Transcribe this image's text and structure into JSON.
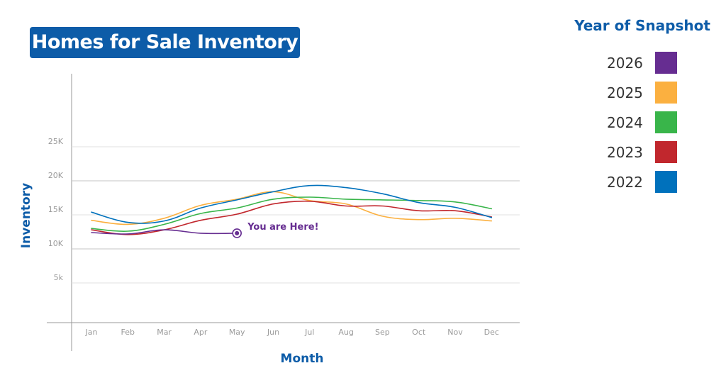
{
  "header": {
    "title": "Homes for Sale Inventory"
  },
  "legend": {
    "title": "Year of Snapshot",
    "items": [
      {
        "label": "2026",
        "color": "#662d91"
      },
      {
        "label": "2025",
        "color": "#fbb040"
      },
      {
        "label": "2024",
        "color": "#39b54a"
      },
      {
        "label": "2023",
        "color": "#c1272d"
      },
      {
        "label": "2022",
        "color": "#0071bc"
      }
    ]
  },
  "chart_data": {
    "type": "line",
    "title": "Homes for Sale Inventory",
    "xlabel": "Month",
    "ylabel": "Inventory",
    "categories": [
      "Jan",
      "Feb",
      "Mar",
      "Apr",
      "May",
      "Jun",
      "Jul",
      "Aug",
      "Sep",
      "Oct",
      "Nov",
      "Dec"
    ],
    "y_ticks": [
      {
        "value": 5000,
        "label": "5k"
      },
      {
        "value": 10000,
        "label": "10K"
      },
      {
        "value": 15000,
        "label": "15K"
      },
      {
        "value": 20000,
        "label": "20K"
      },
      {
        "value": 25000,
        "label": "25K"
      }
    ],
    "ylim": [
      0,
      37000
    ],
    "grid": true,
    "legend_position": "right",
    "series": [
      {
        "name": "2022",
        "color": "#0071bc",
        "values": [
          15400,
          13900,
          14100,
          16000,
          17200,
          18400,
          19300,
          19000,
          18100,
          16800,
          16100,
          14600
        ]
      },
      {
        "name": "2023",
        "color": "#c1272d",
        "values": [
          12800,
          12100,
          12800,
          14200,
          15100,
          16600,
          17000,
          16300,
          16300,
          15600,
          15600,
          14700
        ]
      },
      {
        "name": "2024",
        "color": "#39b54a",
        "values": [
          13000,
          12600,
          13600,
          15200,
          16000,
          17300,
          17600,
          17300,
          17200,
          17100,
          16900,
          15900
        ]
      },
      {
        "name": "2025",
        "color": "#fbb040",
        "values": [
          14200,
          13600,
          14500,
          16400,
          17300,
          18400,
          17100,
          16600,
          14800,
          14300,
          14500,
          14100
        ]
      },
      {
        "name": "2026",
        "color": "#662d91",
        "values": [
          12400,
          12200,
          12800,
          12300,
          12300,
          null,
          null,
          null,
          null,
          null,
          null,
          null
        ]
      }
    ],
    "annotations": [
      {
        "text": "You are Here!",
        "series": "2026",
        "category": "May",
        "color": "#662d91"
      }
    ]
  }
}
